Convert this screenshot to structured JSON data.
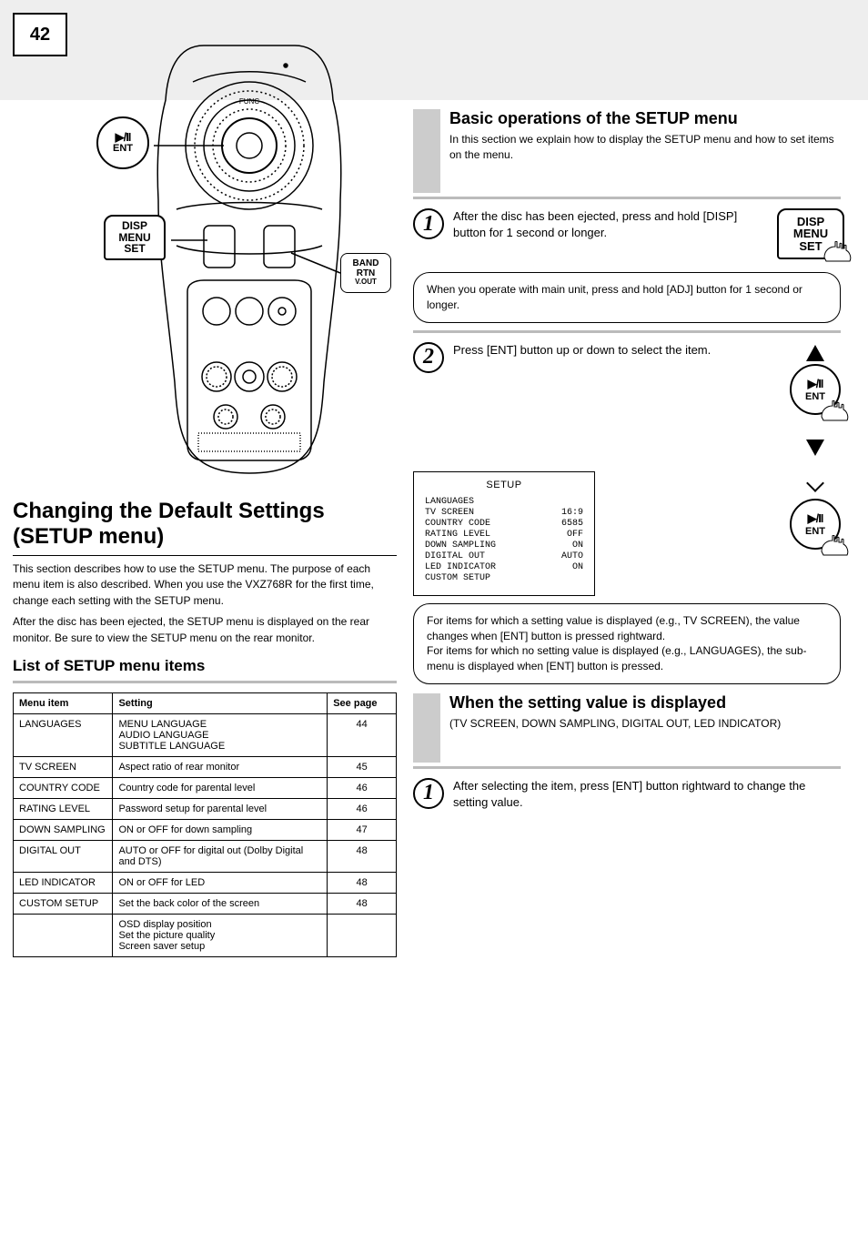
{
  "page_number": "42",
  "left": {
    "remote_callouts": {
      "ent": {
        "play": "▶/II",
        "label": "ENT"
      },
      "disp": {
        "l1": "DISP",
        "l2": "MENU",
        "l3": "SET"
      },
      "band": {
        "l1": "BAND",
        "l2": "RTN",
        "l3": "V.OUT"
      }
    },
    "heading_top": "Changing the Default Settings (SETUP menu)",
    "para1": "This section describes how to use the SETUP menu. The purpose of each menu item is also described. When you use the VXZ768R for the first time, change each setting with the SETUP menu.",
    "para2": "After the disc has been ejected, the SETUP menu is displayed on the rear monitor. Be sure to view the SETUP menu on the rear monitor.",
    "subhead": "List of SETUP menu items",
    "table": {
      "headers": [
        "Menu item",
        "Setting",
        "See page"
      ],
      "rows": [
        [
          "LANGUAGES",
          "MENU LANGUAGE\nAUDIO LANGUAGE\nSUBTITLE LANGUAGE",
          "44"
        ],
        [
          "TV SCREEN",
          "Aspect ratio of rear monitor",
          "45"
        ],
        [
          "COUNTRY CODE",
          "Country code for parental level",
          "46"
        ],
        [
          "RATING LEVEL",
          "Password setup for parental level",
          "46"
        ],
        [
          "DOWN SAMPLING",
          "ON or OFF for down sampling",
          "47"
        ],
        [
          "DIGITAL OUT",
          "AUTO or OFF for digital out (Dolby Digital and DTS)",
          "48"
        ],
        [
          "LED INDICATOR",
          "ON or OFF for LED",
          "48"
        ],
        [
          "CUSTOM SETUP",
          "Set the back color of the screen",
          "48"
        ],
        [
          "",
          "OSD display position\nSet the picture quality\nScreen saver setup",
          ""
        ]
      ]
    }
  },
  "right": {
    "sect1_title": "Basic operations of the SETUP menu",
    "sect1_sub": "In this section we explain how to display the SETUP menu and how to set items on the menu.",
    "step1": "After the disc has been ejected, press and hold [DISP] button for 1 second or longer.",
    "note1": "When you operate with main unit, press and hold [ADJ] button for 1 second or longer.",
    "step2": "Press [ENT] button up or down to select the item.",
    "setup_screen": {
      "title": "SETUP",
      "rows": [
        [
          "LANGUAGES",
          ""
        ],
        [
          "TV SCREEN",
          "16:9"
        ],
        [
          "COUNTRY CODE",
          "6585"
        ],
        [
          "RATING LEVEL",
          "OFF"
        ],
        [
          "DOWN SAMPLING",
          "ON"
        ],
        [
          "DIGITAL OUT",
          "AUTO"
        ],
        [
          "LED INDICATOR",
          "ON"
        ],
        [
          "CUSTOM SETUP",
          ""
        ]
      ]
    },
    "note2": "For items for which a setting value is displayed (e.g., TV SCREEN), the value changes when [ENT] button is pressed rightward.\nFor items for which no setting value is displayed (e.g., LANGUAGES), the sub-menu is displayed when [ENT] button is pressed.",
    "sect2_title": "When the setting value is displayed",
    "sect2_sub": "(TV SCREEN, DOWN SAMPLING, DIGITAL OUT, LED INDICATOR)",
    "step2_1": "After selecting the item, press [ENT] button rightward to change the setting value."
  },
  "colors": {
    "header_bg": "#eeeeee",
    "grey_rule": "#bbbbbb",
    "grey_block": "#cccccc"
  }
}
